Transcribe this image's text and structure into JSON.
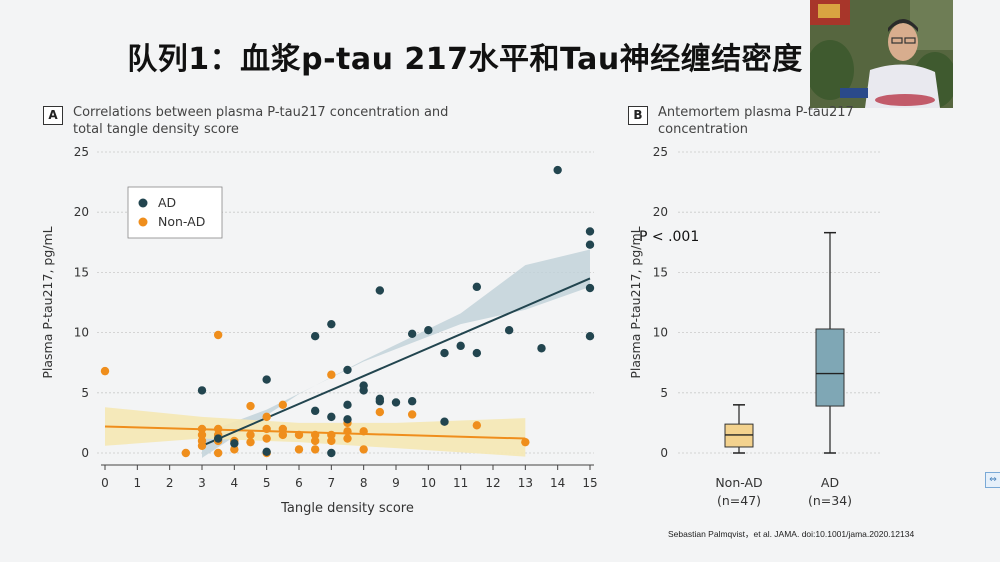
{
  "slide": {
    "title": "队列1：血浆p-tau 217水平和Tau神经缠结密度",
    "citation": "Sebastian Palmqvist，et al. JAMA. doi:10.1001/jama.2020.12134"
  },
  "colors": {
    "ad": "#22454f",
    "non_ad": "#ef8e1c",
    "ad_band": "#c2d2d9",
    "non_ad_band": "#f5e8b4",
    "box_non_ad": "#f3d28e",
    "box_ad": "#7fa7b5"
  },
  "panel_a": {
    "letter": "A",
    "title_line1": "Correlations between plasma P-tau217 concentration and",
    "title_line2": "total tangle density score"
  },
  "panel_b": {
    "letter": "B",
    "title_line1": "Antemortem plasma P-tau217",
    "title_line2": "concentration",
    "p_value": "P < .001"
  },
  "chart_data": [
    {
      "type": "scatter",
      "title": "Correlations between plasma P-tau217 concentration and total tangle density score",
      "xlabel": "Tangle density score",
      "ylabel": "Plasma P-tau217, pg/mL",
      "xlim": [
        0,
        15
      ],
      "ylim": [
        0,
        25
      ],
      "xticks": [
        "0",
        "1",
        "2",
        "3",
        "4",
        "5",
        "6",
        "7",
        "8",
        "9",
        "10",
        "11",
        "12",
        "13",
        "14",
        "15"
      ],
      "yticks": [
        "0",
        "5",
        "10",
        "15",
        "20",
        "25"
      ],
      "legend_position": "top-left",
      "series": [
        {
          "name": "AD",
          "points": [
            [
              3,
              5.2
            ],
            [
              3.5,
              1.2
            ],
            [
              4,
              0.8
            ],
            [
              5,
              6.1
            ],
            [
              5,
              0.1
            ],
            [
              6.5,
              9.7
            ],
            [
              6.5,
              3.5
            ],
            [
              7,
              10.7
            ],
            [
              7,
              3
            ],
            [
              7,
              0
            ],
            [
              7.5,
              6.9
            ],
            [
              7.5,
              4
            ],
            [
              7.5,
              2.8
            ],
            [
              8,
              5.6
            ],
            [
              8,
              5.2
            ],
            [
              8.5,
              13.5
            ],
            [
              8.5,
              4.5
            ],
            [
              8.5,
              4.3
            ],
            [
              9,
              4.2
            ],
            [
              9.5,
              9.9
            ],
            [
              9.5,
              4.3
            ],
            [
              10,
              10.2
            ],
            [
              10.5,
              8.3
            ],
            [
              10.5,
              2.6
            ],
            [
              11,
              8.9
            ],
            [
              11.5,
              13.8
            ],
            [
              11.5,
              8.3
            ],
            [
              12.5,
              10.2
            ],
            [
              13.5,
              8.7
            ],
            [
              14,
              23.5
            ],
            [
              15,
              18.4
            ],
            [
              15,
              17.3
            ],
            [
              15,
              13.7
            ],
            [
              15,
              9.7
            ]
          ],
          "trend": {
            "x": [
              3,
              15
            ],
            "y": [
              0.6,
              14.5
            ]
          }
        },
        {
          "name": "Non-AD",
          "points": [
            [
              0,
              6.8
            ],
            [
              2.5,
              0
            ],
            [
              3,
              2
            ],
            [
              3,
              1.5
            ],
            [
              3,
              1
            ],
            [
              3,
              0.6
            ],
            [
              3.5,
              9.8
            ],
            [
              3.5,
              2
            ],
            [
              3.5,
              1.5
            ],
            [
              3.5,
              1
            ],
            [
              3.5,
              0
            ],
            [
              4,
              1
            ],
            [
              4,
              0.3
            ],
            [
              4.5,
              3.9
            ],
            [
              4.5,
              1.5
            ],
            [
              4.5,
              0.9
            ],
            [
              5,
              3
            ],
            [
              5,
              2
            ],
            [
              5,
              1.2
            ],
            [
              5,
              0
            ],
            [
              5.5,
              4
            ],
            [
              5.5,
              2
            ],
            [
              5.5,
              1.5
            ],
            [
              6,
              1.5
            ],
            [
              6,
              0.3
            ],
            [
              6.5,
              1.5
            ],
            [
              6.5,
              1
            ],
            [
              6.5,
              0.3
            ],
            [
              7,
              6.5
            ],
            [
              7,
              1.5
            ],
            [
              7,
              1
            ],
            [
              7.5,
              2.5
            ],
            [
              7.5,
              1.8
            ],
            [
              7.5,
              1.2
            ],
            [
              8,
              1.8
            ],
            [
              8,
              0.3
            ],
            [
              8.5,
              3.4
            ],
            [
              9.5,
              3.2
            ],
            [
              11.5,
              2.3
            ],
            [
              13,
              0.9
            ]
          ],
          "trend": {
            "x": [
              0,
              13
            ],
            "y": [
              2.2,
              1.2
            ]
          }
        }
      ]
    },
    {
      "type": "box",
      "title": "Antemortem plasma P-tau217 concentration",
      "ylabel": "Plasma P-tau217, pg/mL",
      "ylim": [
        0,
        25
      ],
      "yticks": [
        "0",
        "5",
        "10",
        "15",
        "20",
        "25"
      ],
      "categories": [
        "Non-AD",
        "AD"
      ],
      "n_labels": [
        "(n=47)",
        "(n=34)"
      ],
      "boxes": [
        {
          "name": "Non-AD",
          "min": 0,
          "q1": 0.5,
          "median": 1.5,
          "q3": 2.4,
          "max": 4.0
        },
        {
          "name": "AD",
          "min": 0,
          "q1": 3.9,
          "median": 6.6,
          "q3": 10.3,
          "max": 18.3
        }
      ],
      "annotation": "P < .001"
    }
  ]
}
